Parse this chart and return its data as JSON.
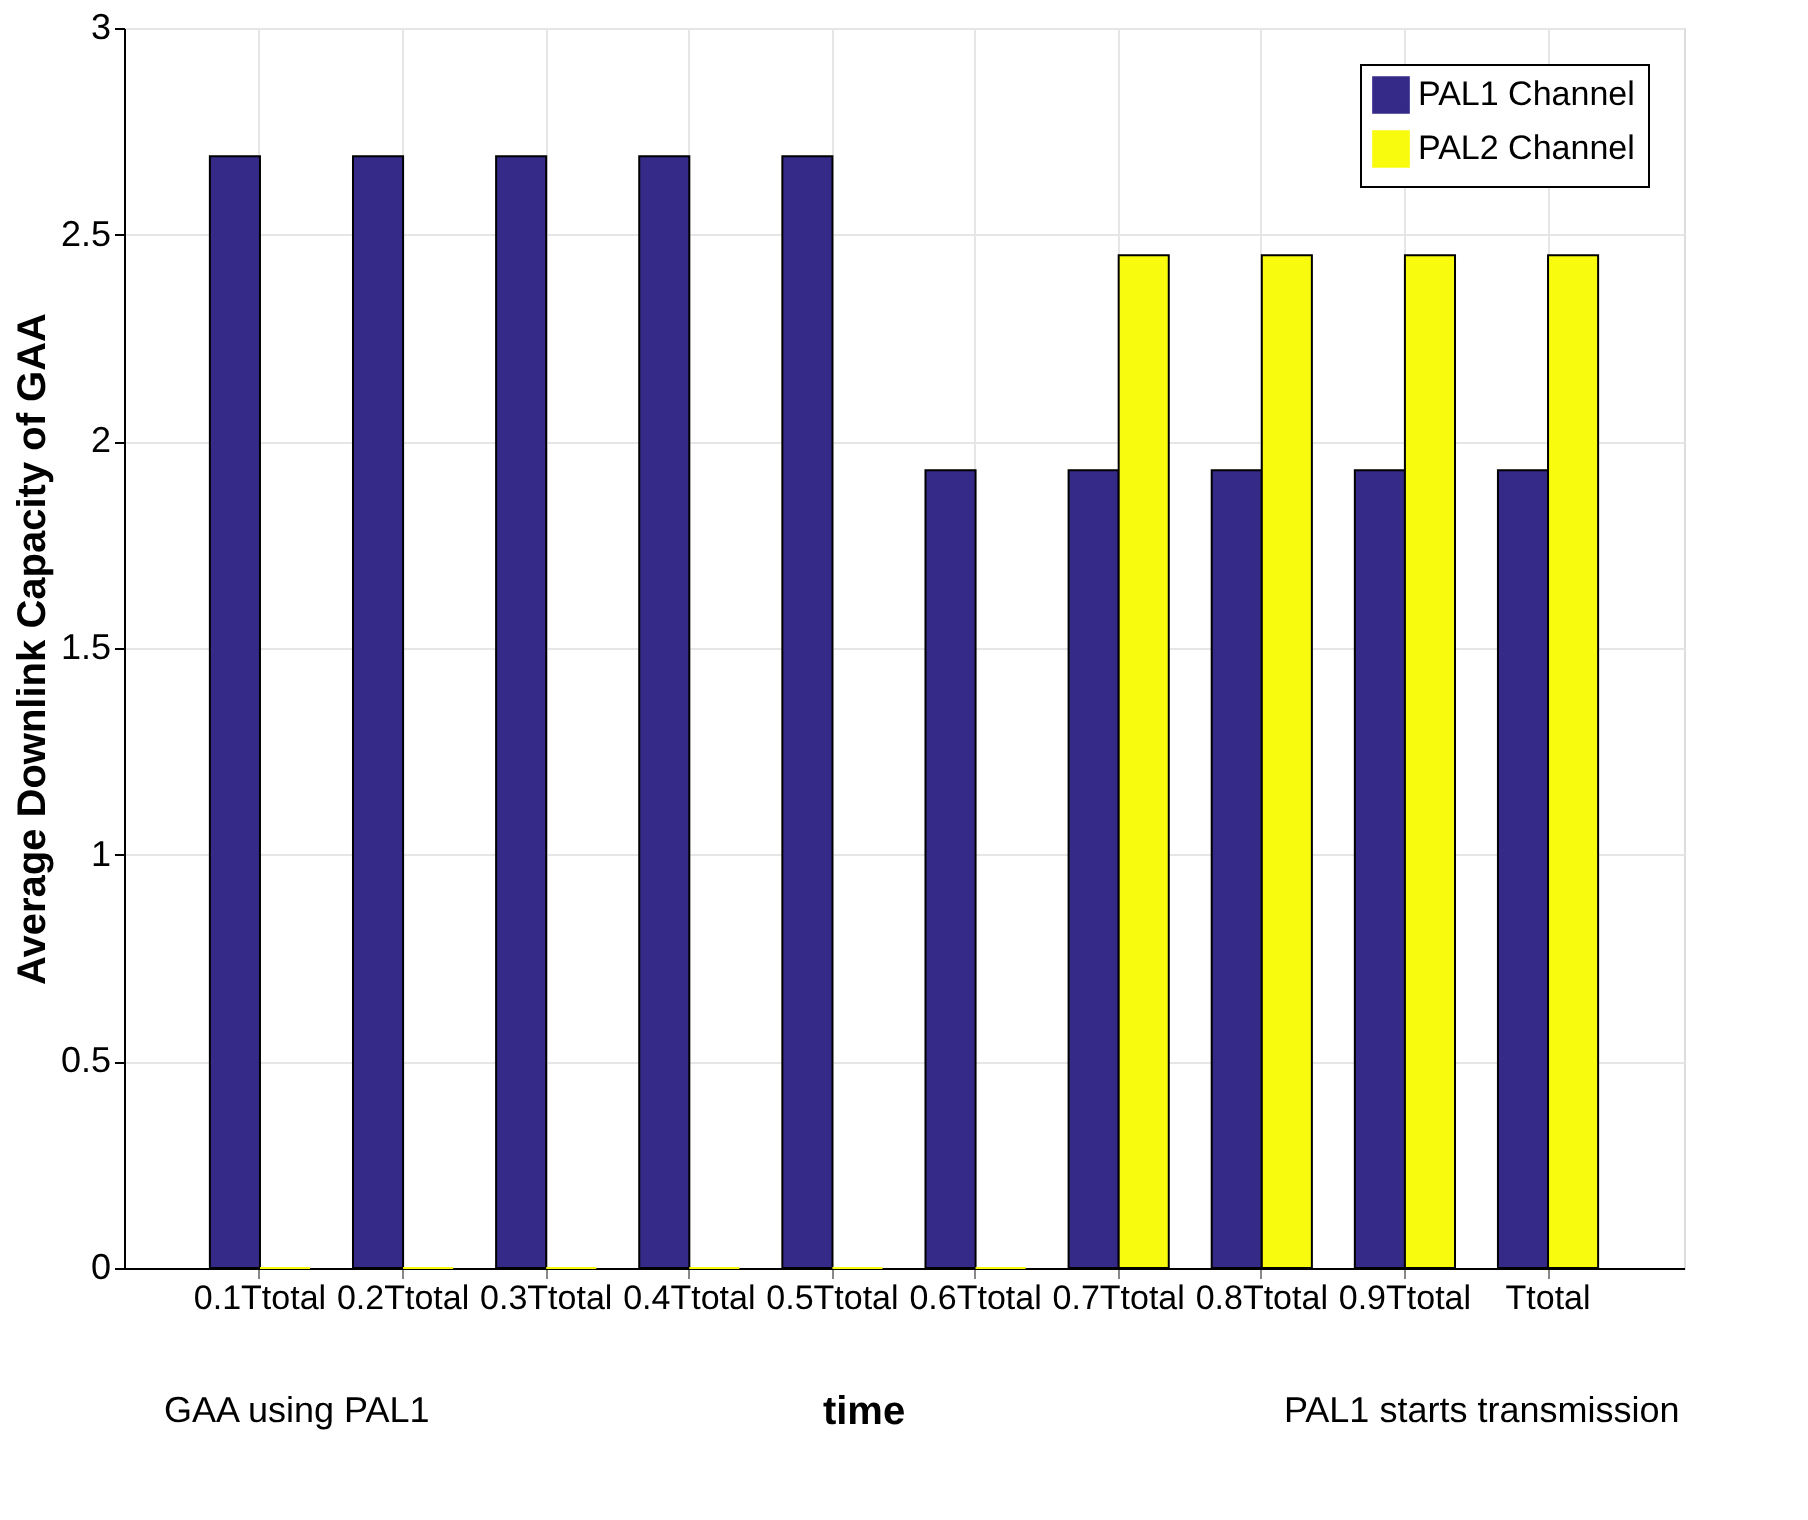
{
  "chart_data": {
    "type": "bar",
    "xlabel": "time",
    "ylabel": "Average Downlink Capacity of GAA",
    "categories": [
      "0.1Ttotal",
      "0.2Ttotal",
      "0.3Ttotal",
      "0.4Ttotal",
      "0.5Ttotal",
      "0.6Ttotal",
      "0.7Ttotal",
      "0.8Ttotal",
      "0.9Ttotal",
      "Ttotal"
    ],
    "series": [
      {
        "name": "PAL1 Channel",
        "color": "#352a87",
        "values": [
          2.69,
          2.69,
          2.69,
          2.69,
          2.69,
          1.93,
          1.93,
          1.93,
          1.93,
          1.93
        ]
      },
      {
        "name": "PAL2 Channel",
        "color": "#f9fb0e",
        "values": [
          0,
          0,
          0,
          0,
          0,
          0,
          2.45,
          2.45,
          2.45,
          2.45
        ]
      }
    ],
    "ylim": [
      0,
      3
    ],
    "yticks": [
      0,
      0.5,
      1,
      1.5,
      2,
      2.5,
      3
    ],
    "grid": true,
    "legend": "top right",
    "annotations": [
      "GAA using PAL1",
      "PAL1 starts transmission"
    ]
  }
}
